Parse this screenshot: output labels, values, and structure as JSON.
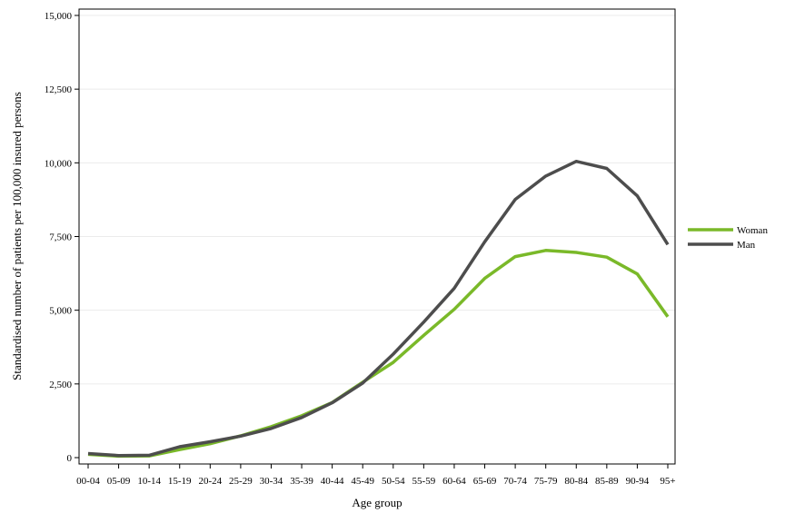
{
  "chart_data": {
    "type": "line",
    "xlabel": "Age group",
    "ylabel": "Standardised number of patients per 100,000 insured persons",
    "categories": [
      "00-04",
      "05-09",
      "10-14",
      "15-19",
      "20-24",
      "25-29",
      "30-34",
      "35-39",
      "40-44",
      "45-49",
      "50-54",
      "55-59",
      "60-64",
      "65-69",
      "70-74",
      "75-79",
      "80-84",
      "85-89",
      "90-94",
      "95+"
    ],
    "ylim": [
      0,
      15000
    ],
    "yticks": [
      0,
      2500,
      5000,
      7500,
      10000,
      12500,
      15000
    ],
    "ytick_labels": [
      "0",
      "2,500",
      "5,000",
      "7,500",
      "10,000",
      "12,500",
      "15,000"
    ],
    "grid": true,
    "legend_position": "right",
    "series": [
      {
        "name": "Woman",
        "color": "#7ab929",
        "values": [
          110,
          50,
          60,
          270,
          470,
          740,
          1050,
          1420,
          1870,
          2560,
          3230,
          4150,
          5030,
          6080,
          6820,
          7030,
          6960,
          6800,
          6230,
          4780
        ]
      },
      {
        "name": "Man",
        "color": "#4d4d4d",
        "values": [
          140,
          70,
          80,
          370,
          540,
          730,
          990,
          1360,
          1860,
          2530,
          3510,
          4600,
          5740,
          7320,
          8760,
          9550,
          10050,
          9810,
          8880,
          7230
        ]
      }
    ]
  }
}
